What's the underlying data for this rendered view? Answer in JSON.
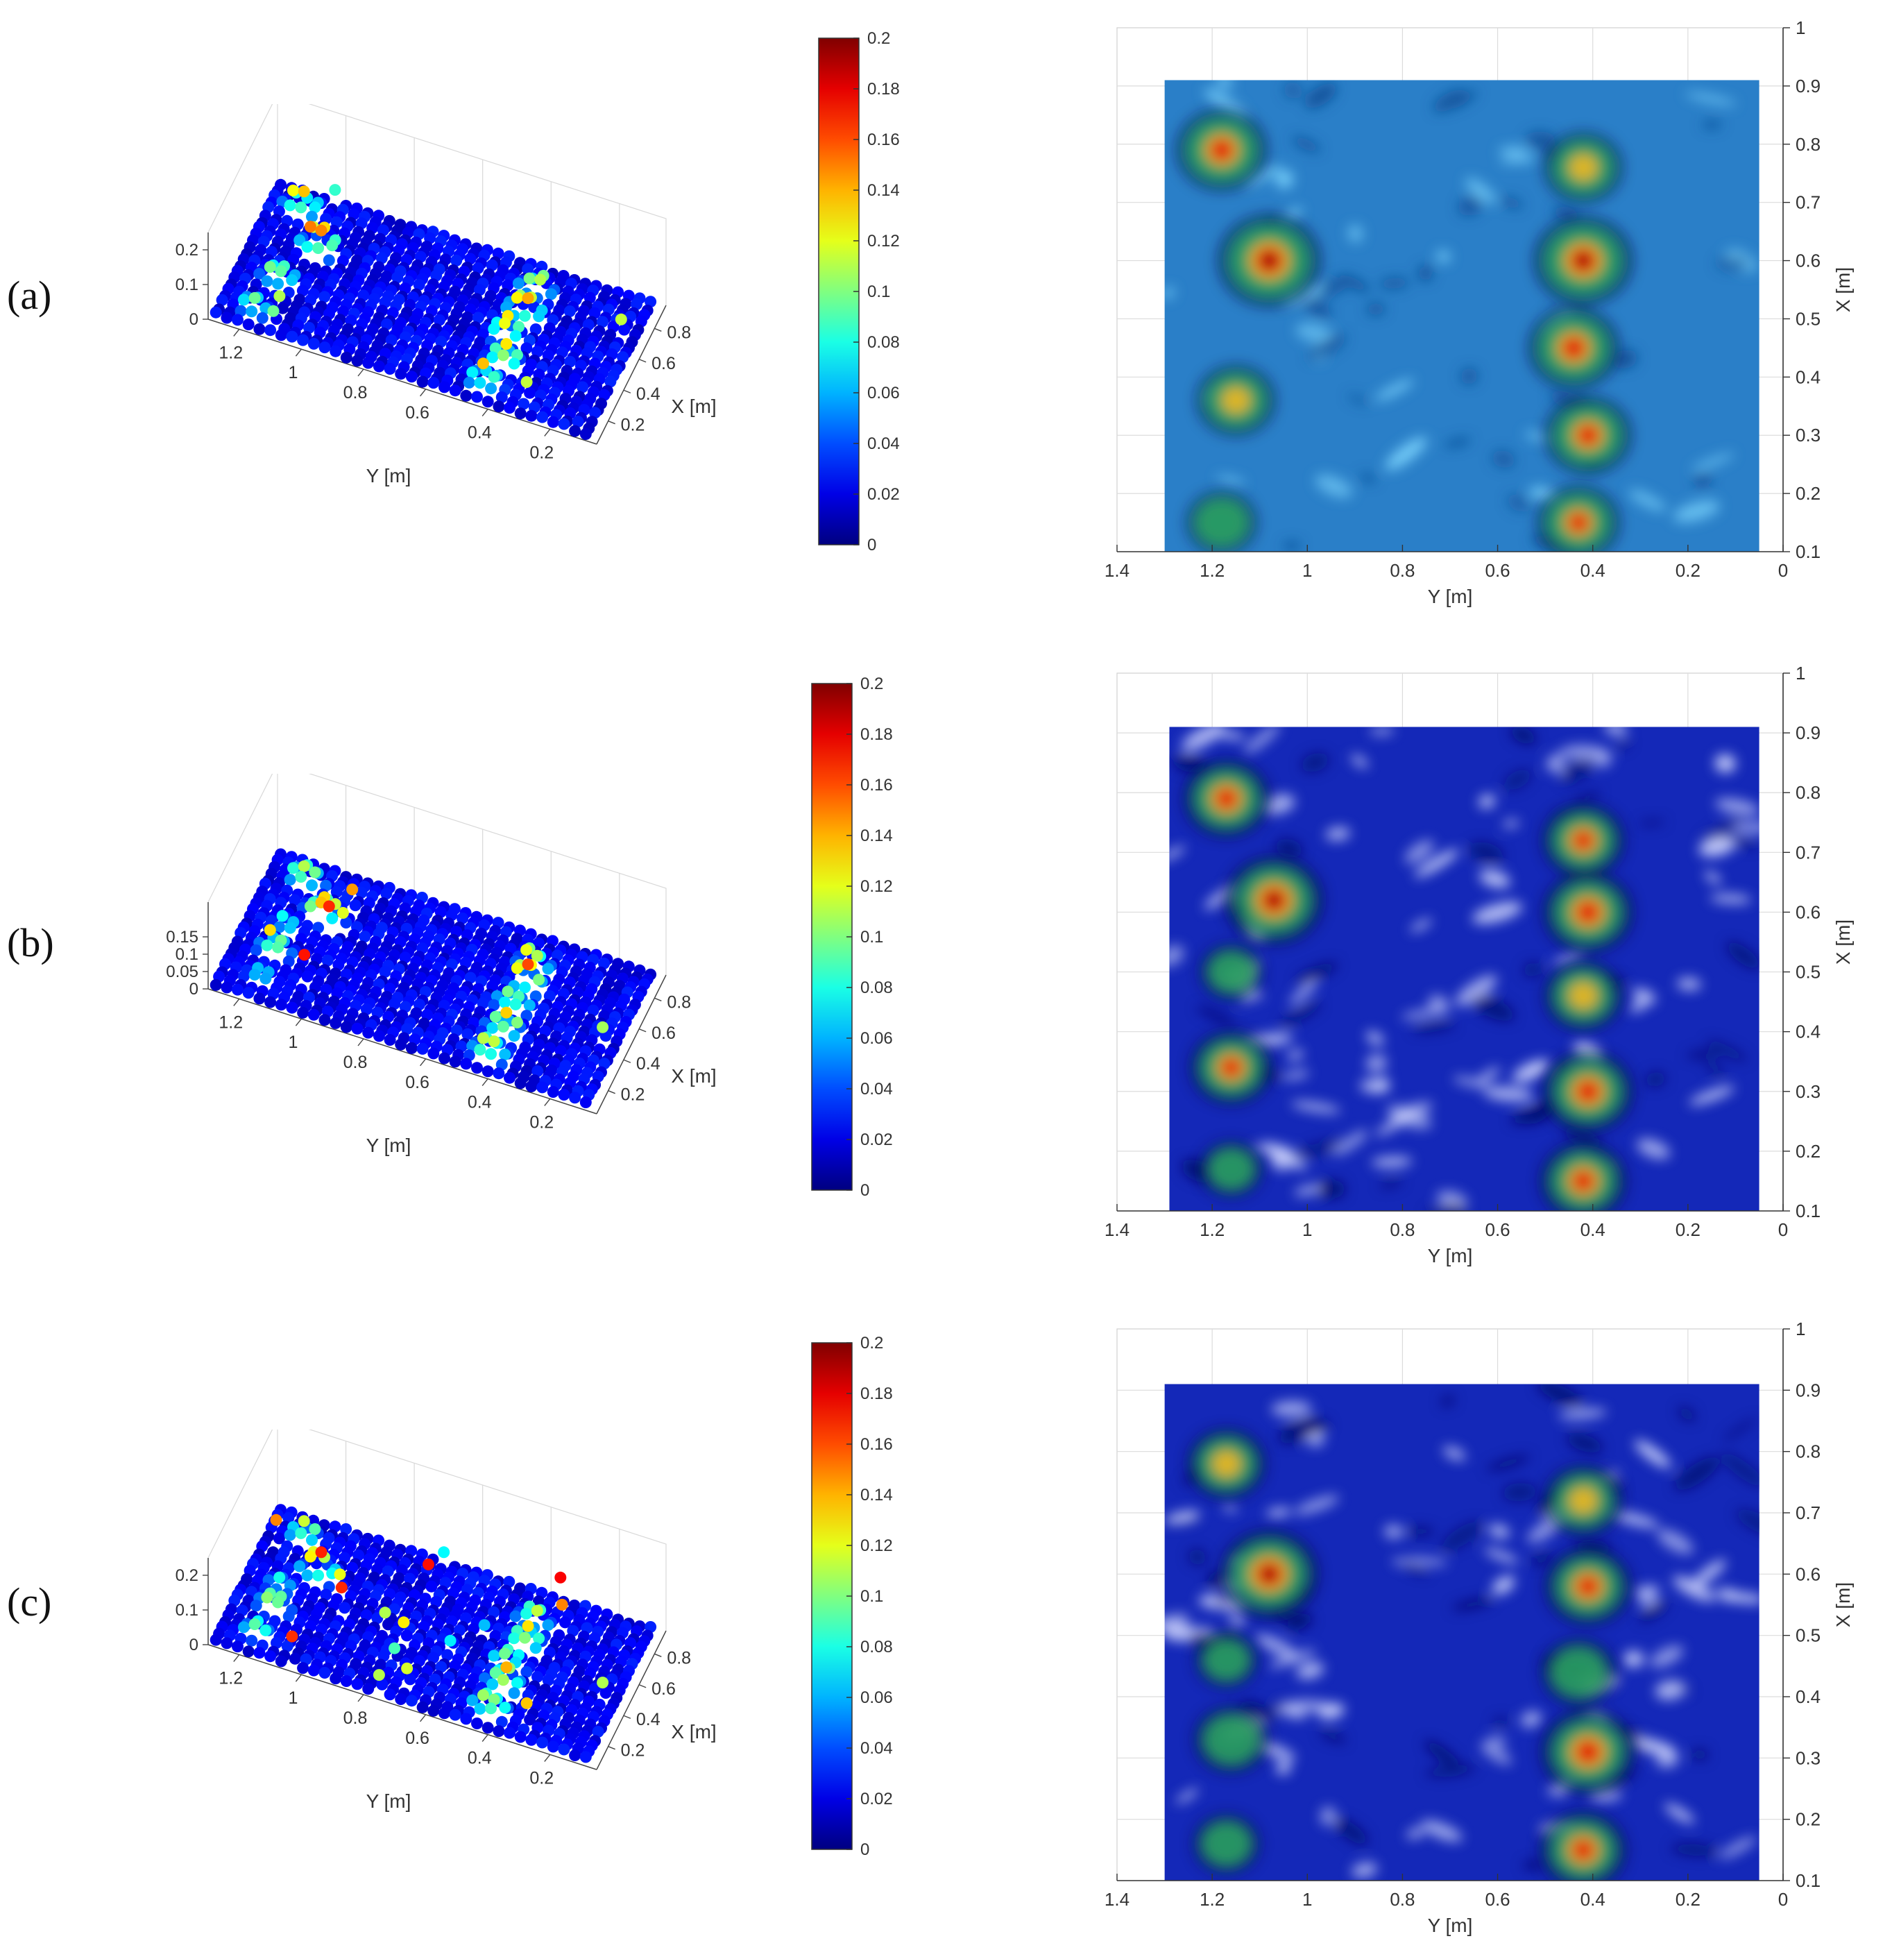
{
  "figure": {
    "panels": [
      {
        "label": "(a)",
        "scatter_zticks": [
          "0",
          "0.1",
          "0.2"
        ]
      },
      {
        "label": "(b)",
        "scatter_zticks": [
          "0",
          "0.05",
          "0.1",
          "0.15"
        ]
      },
      {
        "label": "(c)",
        "scatter_zticks": [
          "0",
          "0.1",
          "0.2"
        ]
      }
    ]
  },
  "chart_data": [
    {
      "type": "scatter",
      "panel": "(a)",
      "view": "3d",
      "xlabel": "Y [m]",
      "ylabel": "X [m]",
      "x_ticks": [
        "1.2",
        "1",
        "0.8",
        "0.6",
        "0.4",
        "0.2"
      ],
      "y_ticks": [
        "0.2",
        "0.4",
        "0.6",
        "0.8"
      ],
      "z_ticks": [
        "0",
        "0.1",
        "0.2"
      ],
      "colorbar": {
        "range": [
          0,
          0.2
        ],
        "ticks": [
          "0",
          "0.02",
          "0.04",
          "0.06",
          "0.08",
          "0.1",
          "0.12",
          "0.14",
          "0.16",
          "0.18",
          "0.2"
        ],
        "colormap": "jet"
      },
      "mounds": [
        {
          "y": 1.18,
          "x": 0.79,
          "h": 0.16
        },
        {
          "y": 1.08,
          "x": 0.6,
          "h": 0.19
        },
        {
          "y": 1.15,
          "x": 0.36,
          "h": 0.13
        },
        {
          "y": 1.18,
          "x": 0.15,
          "h": 0.11
        },
        {
          "y": 0.42,
          "x": 0.76,
          "h": 0.13
        },
        {
          "y": 0.42,
          "x": 0.6,
          "h": 0.18
        },
        {
          "y": 0.44,
          "x": 0.45,
          "h": 0.16
        },
        {
          "y": 0.41,
          "x": 0.3,
          "h": 0.15
        },
        {
          "y": 0.43,
          "x": 0.15,
          "h": 0.14
        }
      ]
    },
    {
      "type": "heatmap",
      "panel": "(a)",
      "xlabel": "Y [m]",
      "ylabel": "X [m]",
      "xlim": [
        1.4,
        0
      ],
      "ylim": [
        0.1,
        1
      ],
      "x_ticks": [
        "1.4",
        "1.2",
        "1",
        "0.8",
        "0.6",
        "0.4",
        "0.2",
        "0"
      ],
      "y_ticks": [
        "0.1",
        "0.2",
        "0.3",
        "0.4",
        "0.5",
        "0.6",
        "0.7",
        "0.8",
        "0.9",
        "1"
      ],
      "data_extent": {
        "y": [
          1.3,
          0.05
        ],
        "x": [
          0.1,
          0.91
        ]
      },
      "background_color": "#2a7fc8",
      "peaks": [
        {
          "y": 1.18,
          "x": 0.79,
          "h": 0.16
        },
        {
          "y": 1.08,
          "x": 0.6,
          "h": 0.19
        },
        {
          "y": 1.15,
          "x": 0.36,
          "h": 0.13
        },
        {
          "y": 1.18,
          "x": 0.15,
          "h": 0.11
        },
        {
          "y": 0.42,
          "x": 0.76,
          "h": 0.13
        },
        {
          "y": 0.42,
          "x": 0.6,
          "h": 0.18
        },
        {
          "y": 0.44,
          "x": 0.45,
          "h": 0.16
        },
        {
          "y": 0.41,
          "x": 0.3,
          "h": 0.15
        },
        {
          "y": 0.43,
          "x": 0.15,
          "h": 0.14
        }
      ]
    },
    {
      "type": "scatter",
      "panel": "(b)",
      "view": "3d",
      "xlabel": "Y [m]",
      "ylabel": "X [m]",
      "x_ticks": [
        "1.2",
        "1",
        "0.8",
        "0.6",
        "0.4",
        "0.2"
      ],
      "y_ticks": [
        "0.2",
        "0.4",
        "0.6",
        "0.8"
      ],
      "z_ticks": [
        "0",
        "0.05",
        "0.1",
        "0.15"
      ],
      "colorbar": {
        "range": [
          0,
          0.2
        ],
        "ticks": [
          "0",
          "0.02",
          "0.04",
          "0.06",
          "0.08",
          "0.1",
          "0.12",
          "0.14",
          "0.16",
          "0.18",
          "0.2"
        ],
        "colormap": "jet"
      },
      "mounds": [
        {
          "y": 1.17,
          "x": 0.79,
          "h": 0.15
        },
        {
          "y": 1.07,
          "x": 0.62,
          "h": 0.18
        },
        {
          "y": 1.16,
          "x": 0.5,
          "h": 0.09
        },
        {
          "y": 1.16,
          "x": 0.34,
          "h": 0.14
        },
        {
          "y": 1.16,
          "x": 0.17,
          "h": 0.09
        },
        {
          "y": 0.42,
          "x": 0.72,
          "h": 0.14
        },
        {
          "y": 0.41,
          "x": 0.6,
          "h": 0.16
        },
        {
          "y": 0.42,
          "x": 0.46,
          "h": 0.13
        },
        {
          "y": 0.41,
          "x": 0.3,
          "h": 0.16
        },
        {
          "y": 0.42,
          "x": 0.15,
          "h": 0.15
        }
      ]
    },
    {
      "type": "heatmap",
      "panel": "(b)",
      "xlabel": "Y [m]",
      "ylabel": "X [m]",
      "xlim": [
        1.4,
        0
      ],
      "ylim": [
        0.1,
        1
      ],
      "x_ticks": [
        "1.4",
        "1.2",
        "1",
        "0.8",
        "0.6",
        "0.4",
        "0.2",
        "0"
      ],
      "y_ticks": [
        "0.1",
        "0.2",
        "0.3",
        "0.4",
        "0.5",
        "0.6",
        "0.7",
        "0.8",
        "0.9",
        "1"
      ],
      "data_extent": {
        "y": [
          1.29,
          0.05
        ],
        "x": [
          0.1,
          0.91
        ]
      },
      "background_color": "#1428b8",
      "peaks": [
        {
          "y": 1.17,
          "x": 0.79,
          "h": 0.15
        },
        {
          "y": 1.07,
          "x": 0.62,
          "h": 0.18
        },
        {
          "y": 1.16,
          "x": 0.5,
          "h": 0.09
        },
        {
          "y": 1.16,
          "x": 0.34,
          "h": 0.14
        },
        {
          "y": 1.16,
          "x": 0.17,
          "h": 0.09
        },
        {
          "y": 0.42,
          "x": 0.72,
          "h": 0.14
        },
        {
          "y": 0.41,
          "x": 0.6,
          "h": 0.16
        },
        {
          "y": 0.42,
          "x": 0.46,
          "h": 0.13
        },
        {
          "y": 0.41,
          "x": 0.3,
          "h": 0.16
        },
        {
          "y": 0.42,
          "x": 0.15,
          "h": 0.15
        }
      ]
    },
    {
      "type": "scatter",
      "panel": "(c)",
      "view": "3d",
      "xlabel": "Y [m]",
      "ylabel": "X [m]",
      "x_ticks": [
        "1.2",
        "1",
        "0.8",
        "0.6",
        "0.4",
        "0.2"
      ],
      "y_ticks": [
        "0.2",
        "0.4",
        "0.6",
        "0.8"
      ],
      "z_ticks": [
        "0",
        "0.1",
        "0.2"
      ],
      "colorbar": {
        "range": [
          0,
          0.2
        ],
        "ticks": [
          "0",
          "0.02",
          "0.04",
          "0.06",
          "0.08",
          "0.1",
          "0.12",
          "0.14",
          "0.16",
          "0.18",
          "0.2"
        ],
        "colormap": "jet"
      },
      "mounds": [
        {
          "y": 1.17,
          "x": 0.78,
          "h": 0.13
        },
        {
          "y": 1.08,
          "x": 0.6,
          "h": 0.18
        },
        {
          "y": 1.17,
          "x": 0.46,
          "h": 0.09
        },
        {
          "y": 1.16,
          "x": 0.33,
          "h": 0.12
        },
        {
          "y": 1.17,
          "x": 0.16,
          "h": 0.1
        },
        {
          "y": 0.42,
          "x": 0.72,
          "h": 0.13
        },
        {
          "y": 0.41,
          "x": 0.58,
          "h": 0.15
        },
        {
          "y": 0.43,
          "x": 0.44,
          "h": 0.12
        },
        {
          "y": 0.41,
          "x": 0.31,
          "h": 0.17
        },
        {
          "y": 0.42,
          "x": 0.15,
          "h": 0.15
        }
      ]
    },
    {
      "type": "heatmap",
      "panel": "(c)",
      "xlabel": "Y [m]",
      "ylabel": "X [m]",
      "xlim": [
        1.4,
        0
      ],
      "ylim": [
        0.1,
        1
      ],
      "x_ticks": [
        "1.4",
        "1.2",
        "1",
        "0.8",
        "0.6",
        "0.4",
        "0.2",
        "0"
      ],
      "y_ticks": [
        "0.1",
        "0.2",
        "0.3",
        "0.4",
        "0.5",
        "0.6",
        "0.7",
        "0.8",
        "0.9",
        "1"
      ],
      "data_extent": {
        "y": [
          1.3,
          0.05
        ],
        "x": [
          0.1,
          0.91
        ]
      },
      "background_color": "#1428b8",
      "peaks": [
        {
          "y": 1.17,
          "x": 0.78,
          "h": 0.13
        },
        {
          "y": 1.08,
          "x": 0.6,
          "h": 0.18
        },
        {
          "y": 1.17,
          "x": 0.46,
          "h": 0.09
        },
        {
          "y": 1.16,
          "x": 0.33,
          "h": 0.12
        },
        {
          "y": 1.17,
          "x": 0.16,
          "h": 0.1
        },
        {
          "y": 0.42,
          "x": 0.72,
          "h": 0.13
        },
        {
          "y": 0.41,
          "x": 0.58,
          "h": 0.15
        },
        {
          "y": 0.43,
          "x": 0.44,
          "h": 0.12
        },
        {
          "y": 0.41,
          "x": 0.31,
          "h": 0.17
        },
        {
          "y": 0.42,
          "x": 0.15,
          "h": 0.15
        }
      ]
    }
  ]
}
